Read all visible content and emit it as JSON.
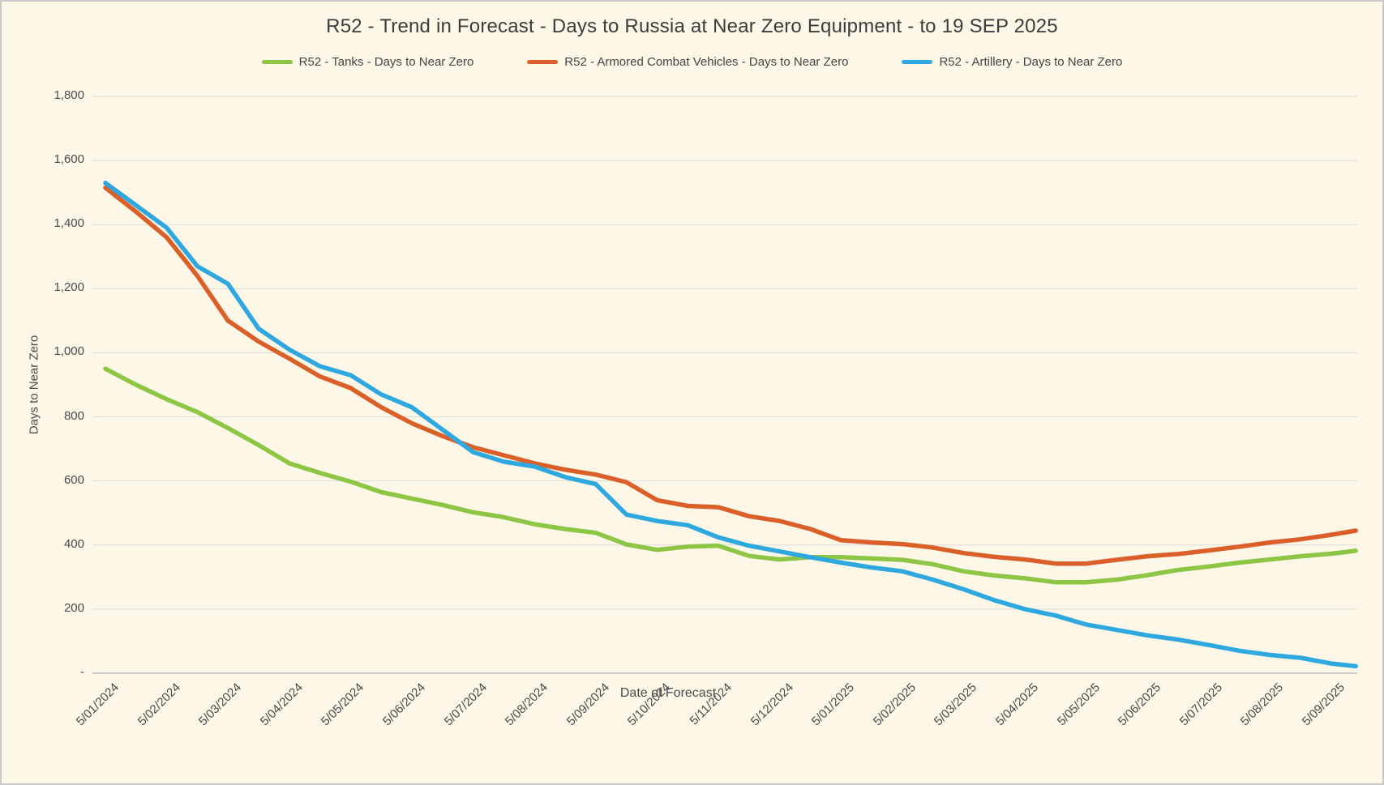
{
  "chart_data": {
    "type": "line",
    "title": "R52 - Trend in Forecast - Days to Russia at Near Zero Equipment - to 19 SEP 2025",
    "legend_position": "top",
    "gridlines": true,
    "background_color": "#FDF7E7",
    "gridline_color": "#DBDBDB",
    "axis_line_color": "#BDBDBD",
    "text_color": "#4A4A4A",
    "x_axis": {
      "title": "Date of Forecast",
      "tick_labels": [
        "5/01/2024",
        "5/02/2024",
        "5/03/2024",
        "5/04/2024",
        "5/05/2024",
        "5/06/2024",
        "5/07/2024",
        "5/08/2024",
        "5/09/2024",
        "5/10/2024",
        "5/11/2024",
        "5/12/2024",
        "5/01/2025",
        "5/02/2025",
        "5/03/2025",
        "5/04/2025",
        "5/05/2025",
        "5/06/2025",
        "5/07/2025",
        "5/08/2025",
        "5/09/2025"
      ]
    },
    "y_axis": {
      "title": "Days to Near Zero",
      "range": [
        0,
        1800
      ],
      "tick_interval": 200,
      "tick_labels": [
        "1,800",
        "1,600",
        "1,400",
        "1,200",
        "1,000",
        "800",
        "600",
        "400",
        "200",
        "-"
      ]
    },
    "x_unit": "month index, 0 = 5/01/2024 tick, 1.0 per labeled tick, series extend to 19 SEP 2025",
    "series": [
      {
        "name": "R52 - Tanks - Days to Near Zero",
        "color": "#8DC545",
        "x": [
          0,
          0.5,
          1,
          1.5,
          2,
          2.5,
          3,
          3.5,
          4,
          4.5,
          5,
          5.5,
          6,
          6.5,
          7,
          7.5,
          8,
          8.5,
          9,
          9.5,
          10,
          10.5,
          11,
          11.5,
          12,
          12.5,
          13,
          13.5,
          14,
          14.5,
          15,
          15.5,
          16,
          16.5,
          17,
          17.5,
          18,
          18.5,
          19,
          19.5,
          20,
          20.4
        ],
        "values": [
          950,
          900,
          855,
          815,
          765,
          712,
          655,
          625,
          598,
          565,
          545,
          525,
          502,
          487,
          465,
          450,
          438,
          402,
          385,
          395,
          398,
          366,
          355,
          362,
          362,
          358,
          354,
          340,
          318,
          305,
          296,
          284,
          284,
          292,
          306,
          322,
          333,
          345,
          355,
          365,
          373,
          382
        ]
      },
      {
        "name": "R52 - Armored Combat Vehicles - Days to Near Zero",
        "color": "#DB5F28",
        "x": [
          0,
          0.5,
          1,
          1.5,
          2,
          2.5,
          3,
          3.5,
          4,
          4.5,
          5,
          5.5,
          6,
          6.5,
          7,
          7.5,
          8,
          8.5,
          9,
          9.5,
          10,
          10.5,
          11,
          11.5,
          12,
          12.5,
          13,
          13.5,
          14,
          14.5,
          15,
          15.5,
          16,
          16.5,
          17,
          17.5,
          18,
          18.5,
          19,
          19.5,
          20,
          20.4
        ],
        "values": [
          1515,
          1440,
          1360,
          1240,
          1100,
          1035,
          982,
          926,
          890,
          830,
          780,
          740,
          705,
          680,
          655,
          635,
          620,
          596,
          540,
          522,
          518,
          490,
          475,
          450,
          415,
          408,
          403,
          392,
          375,
          363,
          355,
          342,
          342,
          354,
          365,
          372,
          383,
          395,
          408,
          418,
          432,
          445
        ]
      },
      {
        "name": "R52 - Artillery - Days to Near Zero",
        "color": "#2FA8DF",
        "x": [
          0,
          0.5,
          1,
          1.5,
          2,
          2.5,
          3,
          3.5,
          4,
          4.5,
          5,
          5.5,
          6,
          6.5,
          7,
          7.5,
          8,
          8.5,
          9,
          9.5,
          10,
          10.5,
          11,
          11.5,
          12,
          12.5,
          13,
          13.5,
          14,
          14.5,
          15,
          15.5,
          16,
          16.5,
          17,
          17.5,
          18,
          18.5,
          19,
          19.5,
          20,
          20.4
        ],
        "values": [
          1530,
          1460,
          1390,
          1270,
          1215,
          1075,
          1010,
          958,
          930,
          870,
          830,
          760,
          690,
          660,
          645,
          612,
          590,
          495,
          475,
          462,
          424,
          398,
          380,
          362,
          345,
          330,
          318,
          292,
          262,
          228,
          200,
          180,
          152,
          135,
          118,
          105,
          88,
          70,
          57,
          48,
          30,
          22
        ]
      }
    ]
  }
}
